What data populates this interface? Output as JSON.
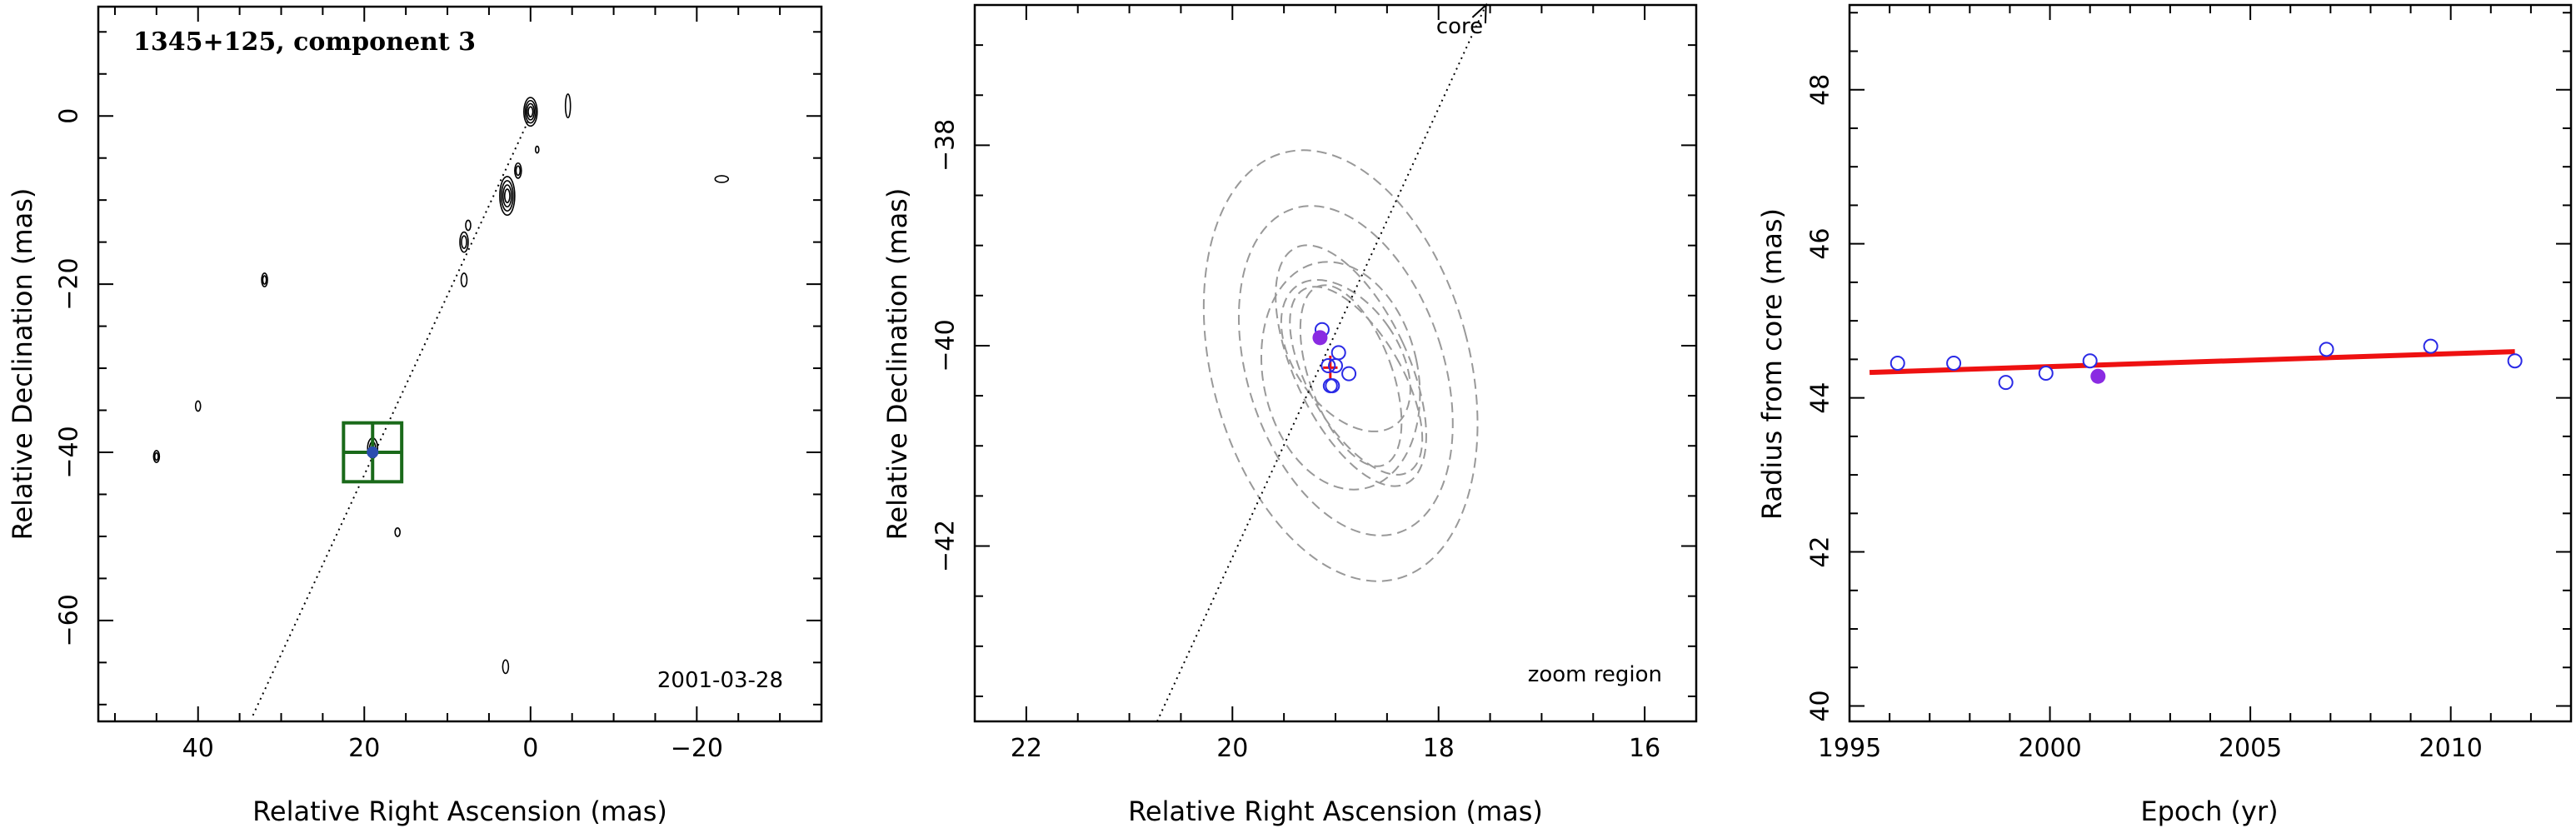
{
  "chart_data": [
    {
      "type": "contour",
      "panel": "left",
      "title": "1345+125, component 3",
      "annotation": "2001-03-28",
      "xlabel": "Relative Right Ascension (mas)",
      "ylabel": "Relative Declination (mas)",
      "xlim": [
        52,
        -35
      ],
      "ylim": [
        -72,
        13
      ],
      "xticks": [
        40,
        20,
        0,
        -20
      ],
      "yticks": [
        0,
        -20,
        -40,
        -60
      ],
      "grid": false,
      "contours": [
        {
          "x": 0,
          "y": 0.5,
          "rx": 0.8,
          "ry": 1.7,
          "rings": 4
        },
        {
          "x": -4.5,
          "y": 1.2,
          "rx": 0.3,
          "ry": 1.4,
          "rings": 1
        },
        {
          "x": 2.8,
          "y": -9.5,
          "rx": 0.9,
          "ry": 2.3,
          "rings": 4
        },
        {
          "x": 1.5,
          "y": -6.5,
          "rx": 0.4,
          "ry": 0.9,
          "rings": 2
        },
        {
          "x": 8,
          "y": -15,
          "rx": 0.5,
          "ry": 1.2,
          "rings": 2
        },
        {
          "x": 8,
          "y": -19.5,
          "rx": 0.35,
          "ry": 0.8,
          "rings": 1
        },
        {
          "x": 32,
          "y": -19.5,
          "rx": 0.35,
          "ry": 0.8,
          "rings": 2
        },
        {
          "x": 40,
          "y": -34.5,
          "rx": 0.3,
          "ry": 0.6,
          "rings": 1
        },
        {
          "x": 45,
          "y": -40.5,
          "rx": 0.35,
          "ry": 0.7,
          "rings": 2
        },
        {
          "x": 19,
          "y": -39.5,
          "rx": 0.6,
          "ry": 1.2,
          "rings": 2
        },
        {
          "x": 16,
          "y": -49.5,
          "rx": 0.3,
          "ry": 0.5,
          "rings": 1
        },
        {
          "x": 3,
          "y": -65.5,
          "rx": 0.35,
          "ry": 0.8,
          "rings": 1
        },
        {
          "x": -23,
          "y": -7.5,
          "rx": 0.8,
          "ry": 0.4,
          "rings": 1
        },
        {
          "x": 7.5,
          "y": -13,
          "rx": 0.3,
          "ry": 0.6,
          "rings": 1
        },
        {
          "x": -0.8,
          "y": -4,
          "rx": 0.2,
          "ry": 0.4,
          "rings": 1
        }
      ],
      "jet_axis": {
        "from": [
          0,
          0
        ],
        "to": [
          33.5,
          -71.5
        ]
      },
      "zoom_box": {
        "xlim": [
          22.5,
          15.5
        ],
        "ylim": [
          -43.5,
          -36.5
        ],
        "crosshair": [
          19,
          -40
        ]
      },
      "marker": {
        "x": 19.0,
        "y": -40.0
      }
    },
    {
      "type": "scatter",
      "panel": "middle",
      "annotation": "zoom region",
      "core_label": "core",
      "xlabel": "Relative Right Ascension (mas)",
      "ylabel": "Relative Declination (mas)",
      "xlim": [
        22.5,
        15.5
      ],
      "ylim": [
        -43.75,
        -36.6
      ],
      "xticks": [
        22,
        20,
        18,
        16
      ],
      "yticks": [
        -38,
        -40,
        -42
      ],
      "grid": false,
      "points_open": [
        {
          "x": 19.13,
          "y": -39.84
        },
        {
          "x": 18.97,
          "y": -40.07
        },
        {
          "x": 18.87,
          "y": -40.28
        },
        {
          "x": 19.07,
          "y": -40.2
        },
        {
          "x": 19.05,
          "y": -40.4
        },
        {
          "x": 19.03,
          "y": -40.4
        },
        {
          "x": 19.0,
          "y": -40.2
        }
      ],
      "points_filled": [
        {
          "x": 19.15,
          "y": -39.92
        }
      ],
      "error_bar": {
        "x": 19.05,
        "y": -40.22,
        "dx": 0.07,
        "dy": 0.12
      },
      "beams": [
        {
          "x": 18.95,
          "y": -40.2,
          "a": 2.2,
          "b": 1.25,
          "pa": -15
        },
        {
          "x": 18.9,
          "y": -40.25,
          "a": 1.7,
          "b": 0.95,
          "pa": -18
        },
        {
          "x": 18.85,
          "y": -40.2,
          "a": 1.3,
          "b": 0.55,
          "pa": -25
        },
        {
          "x": 18.8,
          "y": -40.35,
          "a": 1.05,
          "b": 0.45,
          "pa": -30
        },
        {
          "x": 18.9,
          "y": -40.1,
          "a": 0.85,
          "b": 0.5,
          "pa": -35
        },
        {
          "x": 18.85,
          "y": -40.3,
          "a": 0.95,
          "b": 0.4,
          "pa": -20
        },
        {
          "x": 18.95,
          "y": -40.3,
          "a": 1.15,
          "b": 0.75,
          "pa": -12
        }
      ],
      "jet_axis": {
        "from": [
          20.73,
          -43.75
        ],
        "to": [
          17.54,
          -36.6
        ]
      }
    },
    {
      "type": "scatter",
      "panel": "right",
      "xlabel": "Epoch (yr)",
      "ylabel": "Radius from core (mas)",
      "xlim": [
        1995,
        2013
      ],
      "ylim": [
        39.8,
        49.1
      ],
      "xticks": [
        1995,
        2000,
        2005,
        2010
      ],
      "yticks": [
        40,
        42,
        44,
        46,
        48
      ],
      "grid": false,
      "series": [
        {
          "name": "",
          "x": [
            1996.2,
            1997.6,
            1998.9,
            1999.9,
            2001.0,
            2006.9,
            2009.5,
            2011.6
          ],
          "y": [
            44.45,
            44.45,
            44.2,
            44.32,
            44.48,
            44.63,
            44.67,
            44.48
          ],
          "marker": "open-circle"
        },
        {
          "name": "",
          "x": [
            2001.2
          ],
          "y": [
            44.28
          ],
          "marker": "filled-circle"
        }
      ],
      "fit_line": {
        "x": [
          1995.5,
          2011.6
        ],
        "y": [
          44.33,
          44.6
        ]
      }
    }
  ],
  "colors": {
    "axes": "#000000",
    "contour": "#000000",
    "zoom_box": "#1a6a1a",
    "open_marker": "#2a2ae6",
    "filled_marker": "#8a2be2",
    "fit_line": "#ee1111",
    "beam": "#999999",
    "error_bar": "#ee1111"
  }
}
